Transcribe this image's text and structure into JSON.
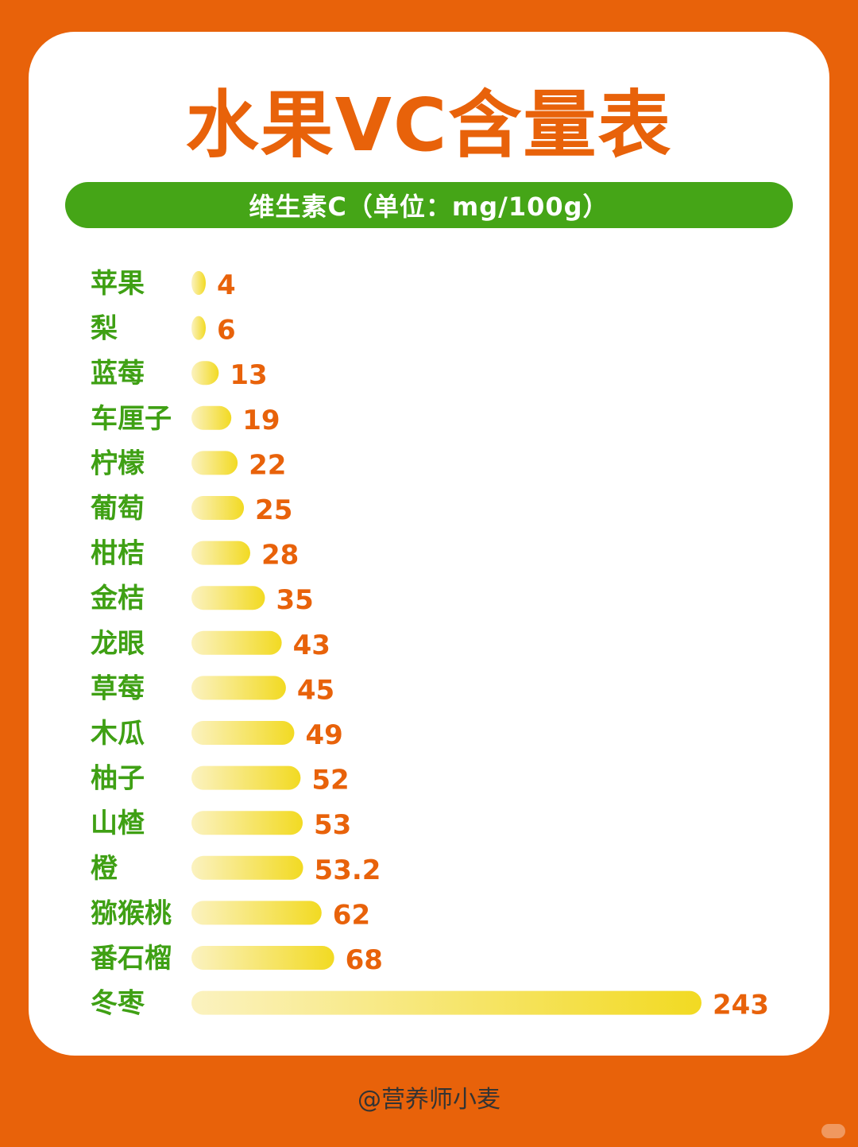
{
  "title": "水果VC含量表",
  "subtitle": "维生素C（单位：mg/100g）",
  "footer": "@营养师小麦",
  "colors": {
    "background": "#E8620A",
    "card": "#FFFFFF",
    "label": "#3FA014",
    "value": "#E8620A",
    "subtitle_bar": "#45A517",
    "bar_start": "#FBF2C0",
    "bar_end": "#F2DA22"
  },
  "chart_data": {
    "type": "bar",
    "orientation": "horizontal",
    "categories": [
      "苹果",
      "梨",
      "蓝莓",
      "车厘子",
      "柠檬",
      "葡萄",
      "柑桔",
      "金桔",
      "龙眼",
      "草莓",
      "木瓜",
      "柚子",
      "山楂",
      "橙",
      "猕猴桃",
      "番石榴",
      "冬枣"
    ],
    "values": [
      4,
      6,
      13,
      19,
      22,
      25,
      28,
      35,
      43,
      45,
      49,
      52,
      53,
      53.2,
      62,
      68,
      243
    ],
    "value_labels": [
      "4",
      "6",
      "13",
      "19",
      "22",
      "25",
      "28",
      "35",
      "43",
      "45",
      "49",
      "52",
      "53",
      "53.2",
      "62",
      "68",
      "243"
    ],
    "title": "水果VC含量表",
    "subtitle": "维生素C（单位：mg/100g）",
    "grid": false,
    "legend": "none"
  }
}
